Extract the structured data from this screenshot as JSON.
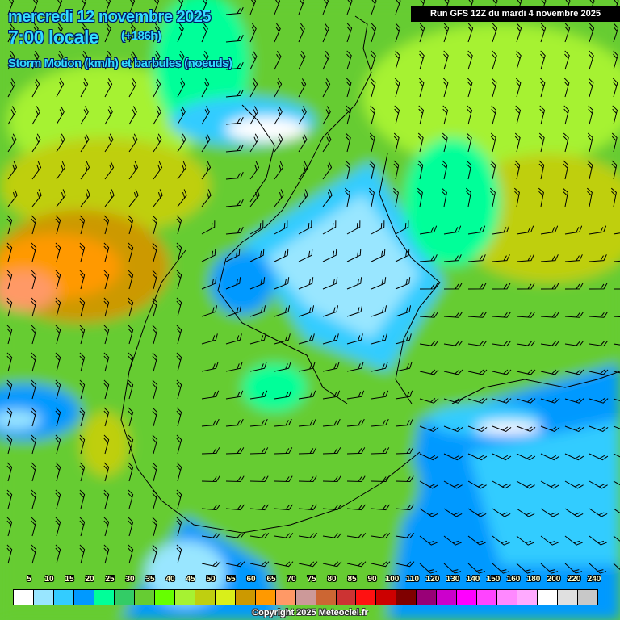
{
  "header": {
    "date": "mercredi 12 novembre 2025",
    "time": "7:00 locale",
    "lead": "(+186h)",
    "parameter": "Storm Motion (km/h) et barbules (noeuds)",
    "run": "Run GFS 12Z du mardi 4 novembre 2025"
  },
  "legend": {
    "labels": [
      "5",
      "10",
      "15",
      "20",
      "25",
      "30",
      "35",
      "40",
      "45",
      "50",
      "55",
      "60",
      "65",
      "70",
      "75",
      "80",
      "85",
      "90",
      "100",
      "110",
      "120",
      "130",
      "140",
      "150",
      "160",
      "180",
      "200",
      "220",
      "240"
    ],
    "colors": [
      "#ffffff",
      "#99e6ff",
      "#33ccff",
      "#0099ff",
      "#00ff99",
      "#33cc66",
      "#66cc33",
      "#66ff00",
      "#a6f232",
      "#bfcf10",
      "#d9ef1a",
      "#cc9900",
      "#ff9900",
      "#ff9966",
      "#cc9999",
      "#cc6633",
      "#cc3333",
      "#ff1111",
      "#cc0000",
      "#7f0000",
      "#990077",
      "#cc00cc",
      "#ff00ff",
      "#ff44ff",
      "#ff88ff",
      "#ffaaff",
      "#ffffff",
      "#e0e0e0",
      "#c8c8c8"
    ]
  },
  "copyright": "Copyright 2025 Meteociel.fr",
  "barb_icon": "wind-barb-icon"
}
